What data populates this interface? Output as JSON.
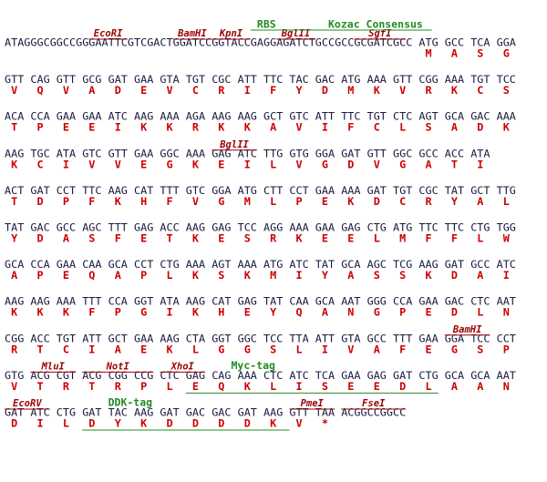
{
  "dna_color": "#1a1a40",
  "aa_color": "#cc0000",
  "lines": [
    {
      "prefix": "ATAGGGCGGCCGGGAATTCGTCGACTGGATCCGGTACCGAGGAGATCTGCCGCCGCGATCGCC",
      "codons": [
        "ATG",
        "GCC",
        "TCA",
        "GGA"
      ],
      "aa": [
        "M",
        "A",
        "S",
        "G"
      ],
      "labels": [
        {
          "text": "EcoRI",
          "color": "#990000"
        },
        {
          "text": "BamHI",
          "color": "#990000"
        },
        {
          "text": "KpnI",
          "color": "#990000"
        },
        {
          "text": "BglII",
          "color": "#990000"
        },
        {
          "text": "SgfI",
          "color": "#990000"
        },
        {
          "text": "RBS",
          "color": "#228b22"
        },
        {
          "text": "Kozac Consensus",
          "color": "#228b22"
        }
      ]
    },
    {
      "codons": [
        "GTT",
        "CAG",
        "GTT",
        "GCG",
        "GAT",
        "GAA",
        "GTA",
        "TGT",
        "CGC",
        "ATT",
        "TTC",
        "TAC",
        "GAC",
        "ATG",
        "AAA",
        "GTT",
        "CGG",
        "AAA",
        "TGT",
        "TCC"
      ],
      "aa": [
        "V",
        "Q",
        "V",
        "A",
        "D",
        "E",
        "V",
        "C",
        "R",
        "I",
        "F",
        "Y",
        "D",
        "M",
        "K",
        "V",
        "R",
        "K",
        "C",
        "S"
      ],
      "labels": []
    },
    {
      "codons": [
        "ACA",
        "CCA",
        "GAA",
        "GAA",
        "ATC",
        "AAG",
        "AAA",
        "AGA",
        "AAG",
        "AAG",
        "GCT",
        "GTC",
        "ATT",
        "TTC",
        "TGT",
        "CTC",
        "AGT",
        "GCA",
        "GAC",
        "AAA"
      ],
      "aa": [
        "T",
        "P",
        "E",
        "E",
        "I",
        "K",
        "K",
        "R",
        "K",
        "K",
        "A",
        "V",
        "I",
        "F",
        "C",
        "L",
        "S",
        "A",
        "D",
        "K"
      ],
      "labels": []
    },
    {
      "codons": [
        "AAG",
        "TGC",
        "ATA",
        "GTC",
        "GTT",
        "GAA",
        "GGC",
        "AAA",
        "GAG",
        "ATC",
        "TTG",
        "GTG",
        "GGA",
        "GAT",
        "GTT",
        "GGC",
        "GCC",
        "ACC",
        "ATA"
      ],
      "aa": [
        "K",
        "C",
        "I",
        "V",
        "V",
        "E",
        "G",
        "K",
        "E",
        "I",
        "L",
        "V",
        "G",
        "D",
        "V",
        "G",
        "A",
        "T",
        "I"
      ],
      "labels": [
        {
          "text": "BglII",
          "color": "#990000"
        }
      ]
    },
    {
      "codons": [
        "ACT",
        "GAT",
        "CCT",
        "TTC",
        "AAG",
        "CAT",
        "TTT",
        "GTC",
        "GGA",
        "ATG",
        "CTT",
        "CCT",
        "GAA",
        "AAA",
        "GAT",
        "TGT",
        "CGC",
        "TAT",
        "GCT",
        "TTG"
      ],
      "aa": [
        "T",
        "D",
        "P",
        "F",
        "K",
        "H",
        "F",
        "V",
        "G",
        "M",
        "L",
        "P",
        "E",
        "K",
        "D",
        "C",
        "R",
        "Y",
        "A",
        "L"
      ],
      "labels": []
    },
    {
      "codons": [
        "TAT",
        "GAC",
        "GCC",
        "AGC",
        "TTT",
        "GAG",
        "ACC",
        "AAG",
        "GAG",
        "TCC",
        "AGG",
        "AAA",
        "GAA",
        "GAG",
        "CTG",
        "ATG",
        "TTC",
        "TTC",
        "CTG",
        "TGG"
      ],
      "aa": [
        "Y",
        "D",
        "A",
        "S",
        "F",
        "E",
        "T",
        "K",
        "E",
        "S",
        "R",
        "K",
        "E",
        "E",
        "L",
        "M",
        "F",
        "F",
        "L",
        "W"
      ],
      "labels": []
    },
    {
      "codons": [
        "GCA",
        "CCA",
        "GAA",
        "CAA",
        "GCA",
        "CCT",
        "CTG",
        "AAA",
        "AGT",
        "AAA",
        "ATG",
        "ATC",
        "TAT",
        "GCA",
        "AGC",
        "TCG",
        "AAG",
        "GAT",
        "GCC",
        "ATC"
      ],
      "aa": [
        "A",
        "P",
        "E",
        "Q",
        "A",
        "P",
        "L",
        "K",
        "S",
        "K",
        "M",
        "I",
        "Y",
        "A",
        "S",
        "S",
        "K",
        "D",
        "A",
        "I"
      ],
      "labels": []
    },
    {
      "codons": [
        "AAG",
        "AAG",
        "AAA",
        "TTT",
        "CCA",
        "GGT",
        "ATA",
        "AAG",
        "CAT",
        "GAG",
        "TAT",
        "CAA",
        "GCA",
        "AAT",
        "GGG",
        "CCA",
        "GAA",
        "GAC",
        "CTC",
        "AAT"
      ],
      "aa": [
        "K",
        "K",
        "K",
        "F",
        "P",
        "G",
        "I",
        "K",
        "H",
        "E",
        "Y",
        "Q",
        "A",
        "N",
        "G",
        "P",
        "E",
        "D",
        "L",
        "N"
      ],
      "labels": []
    },
    {
      "codons": [
        "CGG",
        "ACC",
        "TGT",
        "ATT",
        "GCT",
        "GAA",
        "AAG",
        "CTA",
        "GGT",
        "GGC",
        "TCC",
        "TTA",
        "ATT",
        "GTA",
        "GCC",
        "TTT",
        "GAA",
        "GGA",
        "TCC",
        "CCT"
      ],
      "aa": [
        "R",
        "T",
        "C",
        "I",
        "A",
        "E",
        "K",
        "L",
        "G",
        "G",
        "S",
        "L",
        "I",
        "V",
        "A",
        "F",
        "E",
        "G",
        "S",
        "P"
      ],
      "labels": [
        {
          "text": "BamHI",
          "color": "#990000"
        }
      ]
    },
    {
      "codons": [
        "GTG",
        "ACG",
        "CGT",
        "ACG",
        "CGG",
        "CCG",
        "CTC",
        "GAG",
        "CAG",
        "AAA",
        "CTC",
        "ATC",
        "TCA",
        "GAA",
        "GAG",
        "GAT",
        "CTG",
        "GCA",
        "GCA",
        "AAT"
      ],
      "aa": [
        "V",
        "T",
        "R",
        "T",
        "R",
        "P",
        "L",
        "E",
        "Q",
        "K",
        "L",
        "I",
        "S",
        "E",
        "E",
        "D",
        "L",
        "A",
        "A",
        "N"
      ],
      "labels": [
        {
          "text": "MluI",
          "color": "#990000"
        },
        {
          "text": "NotI",
          "color": "#990000"
        },
        {
          "text": "XhoI",
          "color": "#990000"
        },
        {
          "text": "Myc-tag",
          "color": "#228b22"
        }
      ]
    },
    {
      "codons": [
        "GAT",
        "ATC",
        "CTG",
        "GAT",
        "TAC",
        "AAG",
        "GAT",
        "GAC",
        "GAC",
        "GAT",
        "AAG",
        "GTT",
        "TAA"
      ],
      "suffix": "ACGGCCGGCC",
      "aa": [
        "D",
        "I",
        "L",
        "D",
        "Y",
        "K",
        "D",
        "D",
        "D",
        "D",
        "K",
        "V",
        "*"
      ],
      "labels": [
        {
          "text": "EcoRV",
          "color": "#990000"
        },
        {
          "text": "DDK-tag",
          "color": "#228b22"
        },
        {
          "text": "PmeI",
          "color": "#990000"
        },
        {
          "text": "FseI",
          "color": "#990000"
        }
      ]
    }
  ]
}
